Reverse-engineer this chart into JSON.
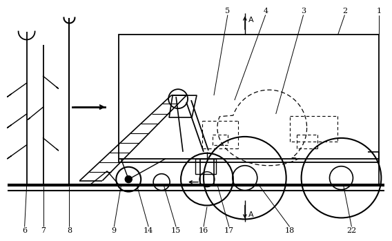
{
  "bg_color": "#ffffff",
  "fig_width": 5.68,
  "fig_height": 3.49,
  "dpi": 100
}
